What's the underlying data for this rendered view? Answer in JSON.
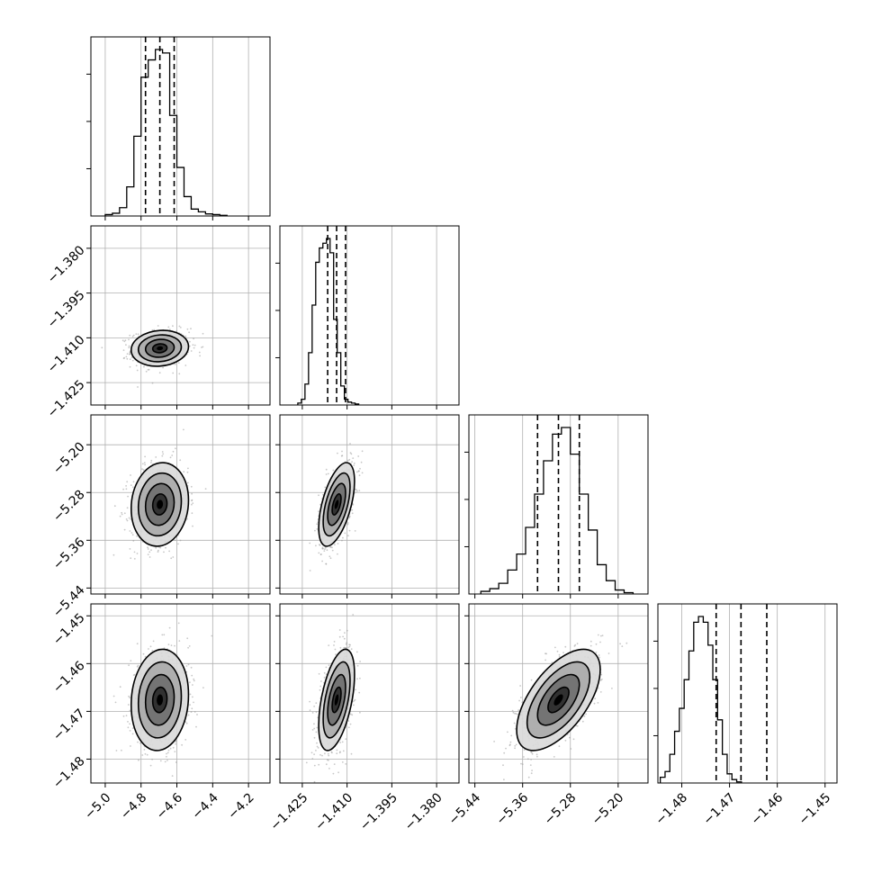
{
  "chart_data": {
    "type": "scatter",
    "title": "",
    "parameters": [
      {
        "index": 0,
        "median": -4.695,
        "q16": -4.775,
        "q84": -4.615,
        "sigma": 0.08,
        "range": [
          -5.08,
          -4.08
        ],
        "ticks": [
          -5.0,
          -4.8,
          -4.6,
          -4.4,
          -4.2
        ],
        "tick_labels": [
          "−5.0",
          "−4.8",
          "−4.6",
          "−4.4",
          "−4.2"
        ]
      },
      {
        "index": 1,
        "median": -1.4135,
        "q16": -1.4165,
        "q84": -1.4105,
        "sigma": 0.003,
        "range": [
          -1.4325,
          -1.3725
        ],
        "ticks": [
          -1.425,
          -1.41,
          -1.395,
          -1.38
        ],
        "tick_labels": [
          "−1.425",
          "−1.410",
          "−1.395",
          "−1.380"
        ]
      },
      {
        "index": 2,
        "median": -5.3,
        "q16": -5.335,
        "q84": -5.265,
        "sigma": 0.035,
        "range": [
          -5.45,
          -5.15
        ],
        "ticks": [
          -5.44,
          -5.36,
          -5.28,
          -5.2
        ],
        "tick_labels": [
          "−5.44",
          "−5.36",
          "−5.28",
          "−5.20"
        ]
      },
      {
        "index": 3,
        "median": -1.4676,
        "q16": -1.4728,
        "q84": -1.4622,
        "sigma": 0.0053,
        "range": [
          -1.485,
          -1.4475
        ],
        "ticks": [
          -1.48,
          -1.47,
          -1.46,
          -1.45
        ],
        "tick_labels": [
          "−1.48",
          "−1.47",
          "−1.46",
          "−1.45"
        ]
      }
    ],
    "grid": true,
    "legend": "none",
    "histograms": [
      {
        "param": 0,
        "bins": [
          {
            "lo": -5.0,
            "hi": -4.96,
            "count": 2
          },
          {
            "lo": -4.96,
            "hi": -4.92,
            "count": 4
          },
          {
            "lo": -4.92,
            "hi": -4.88,
            "count": 12
          },
          {
            "lo": -4.88,
            "hi": -4.84,
            "count": 42
          },
          {
            "lo": -4.84,
            "hi": -4.8,
            "count": 115
          },
          {
            "lo": -4.8,
            "hi": -4.76,
            "count": 200
          },
          {
            "lo": -4.76,
            "hi": -4.72,
            "count": 225
          },
          {
            "lo": -4.72,
            "hi": -4.68,
            "count": 240
          },
          {
            "lo": -4.68,
            "hi": -4.64,
            "count": 235
          },
          {
            "lo": -4.64,
            "hi": -4.6,
            "count": 145
          },
          {
            "lo": -4.6,
            "hi": -4.56,
            "count": 70
          },
          {
            "lo": -4.56,
            "hi": -4.52,
            "count": 28
          },
          {
            "lo": -4.52,
            "hi": -4.48,
            "count": 10
          },
          {
            "lo": -4.48,
            "hi": -4.44,
            "count": 6
          },
          {
            "lo": -4.44,
            "hi": -4.4,
            "count": 3
          },
          {
            "lo": -4.4,
            "hi": -4.36,
            "count": 2
          },
          {
            "lo": -4.36,
            "hi": -4.32,
            "count": 1
          }
        ]
      },
      {
        "param": 1,
        "bins": [
          {
            "lo": -1.4265,
            "hi": -1.4253,
            "count": 2
          },
          {
            "lo": -1.4253,
            "hi": -1.4241,
            "count": 6
          },
          {
            "lo": -1.4241,
            "hi": -1.4229,
            "count": 22
          },
          {
            "lo": -1.4229,
            "hi": -1.4217,
            "count": 55
          },
          {
            "lo": -1.4217,
            "hi": -1.4205,
            "count": 105
          },
          {
            "lo": -1.4205,
            "hi": -1.4193,
            "count": 150
          },
          {
            "lo": -1.4193,
            "hi": -1.4181,
            "count": 165
          },
          {
            "lo": -1.4181,
            "hi": -1.4169,
            "count": 170
          },
          {
            "lo": -1.4169,
            "hi": -1.4157,
            "count": 175
          },
          {
            "lo": -1.4157,
            "hi": -1.4145,
            "count": 160
          },
          {
            "lo": -1.4145,
            "hi": -1.4133,
            "count": 90
          },
          {
            "lo": -1.4133,
            "hi": -1.4121,
            "count": 55
          },
          {
            "lo": -1.4121,
            "hi": -1.4109,
            "count": 20
          },
          {
            "lo": -1.4109,
            "hi": -1.4097,
            "count": 6
          },
          {
            "lo": -1.4097,
            "hi": -1.4085,
            "count": 3
          },
          {
            "lo": -1.4085,
            "hi": -1.4073,
            "count": 2
          },
          {
            "lo": -1.4073,
            "hi": -1.4061,
            "count": 1
          }
        ]
      },
      {
        "param": 2,
        "bins": [
          {
            "lo": -5.43,
            "hi": -5.415,
            "count": 2
          },
          {
            "lo": -5.415,
            "hi": -5.4,
            "count": 4
          },
          {
            "lo": -5.4,
            "hi": -5.385,
            "count": 8
          },
          {
            "lo": -5.385,
            "hi": -5.37,
            "count": 18
          },
          {
            "lo": -5.37,
            "hi": -5.355,
            "count": 30
          },
          {
            "lo": -5.355,
            "hi": -5.34,
            "count": 50
          },
          {
            "lo": -5.34,
            "hi": -5.325,
            "count": 75
          },
          {
            "lo": -5.325,
            "hi": -5.31,
            "count": 100
          },
          {
            "lo": -5.31,
            "hi": -5.295,
            "count": 120
          },
          {
            "lo": -5.295,
            "hi": -5.28,
            "count": 125
          },
          {
            "lo": -5.28,
            "hi": -5.265,
            "count": 105
          },
          {
            "lo": -5.265,
            "hi": -5.25,
            "count": 75
          },
          {
            "lo": -5.25,
            "hi": -5.235,
            "count": 48
          },
          {
            "lo": -5.235,
            "hi": -5.22,
            "count": 22
          },
          {
            "lo": -5.22,
            "hi": -5.205,
            "count": 10
          },
          {
            "lo": -5.205,
            "hi": -5.19,
            "count": 3
          },
          {
            "lo": -5.19,
            "hi": -5.175,
            "count": 1
          }
        ]
      },
      {
        "param": 3,
        "bins": [
          {
            "lo": -1.4845,
            "hi": -1.4835,
            "count": 5
          },
          {
            "lo": -1.4835,
            "hi": -1.4825,
            "count": 10
          },
          {
            "lo": -1.4825,
            "hi": -1.4815,
            "count": 25
          },
          {
            "lo": -1.4815,
            "hi": -1.4805,
            "count": 45
          },
          {
            "lo": -1.4805,
            "hi": -1.4795,
            "count": 65
          },
          {
            "lo": -1.4795,
            "hi": -1.4785,
            "count": 90
          },
          {
            "lo": -1.4785,
            "hi": -1.4775,
            "count": 115
          },
          {
            "lo": -1.4775,
            "hi": -1.4765,
            "count": 140
          },
          {
            "lo": -1.4765,
            "hi": -1.4755,
            "count": 145
          },
          {
            "lo": -1.4755,
            "hi": -1.4745,
            "count": 140
          },
          {
            "lo": -1.4745,
            "hi": -1.4735,
            "count": 120
          },
          {
            "lo": -1.4735,
            "hi": -1.4725,
            "count": 90
          },
          {
            "lo": -1.4725,
            "hi": -1.4715,
            "count": 55
          },
          {
            "lo": -1.4715,
            "hi": -1.4705,
            "count": 25
          },
          {
            "lo": -1.4705,
            "hi": -1.4695,
            "count": 8
          },
          {
            "lo": -1.4695,
            "hi": -1.4685,
            "count": 3
          },
          {
            "lo": -1.4685,
            "hi": -1.4675,
            "count": 1
          }
        ]
      }
    ],
    "pairs": [
      {
        "x_param": 0,
        "y_param": 1,
        "correlation": 0.1
      },
      {
        "x_param": 0,
        "y_param": 2,
        "correlation": 0.1
      },
      {
        "x_param": 1,
        "y_param": 2,
        "correlation": 0.55
      },
      {
        "x_param": 0,
        "y_param": 3,
        "correlation": 0.1
      },
      {
        "x_param": 1,
        "y_param": 3,
        "correlation": 0.5
      },
      {
        "x_param": 2,
        "y_param": 3,
        "correlation": 0.6
      }
    ],
    "contour_levels_sigma": [
      0.5,
      1.0,
      1.5,
      2.0
    ]
  }
}
